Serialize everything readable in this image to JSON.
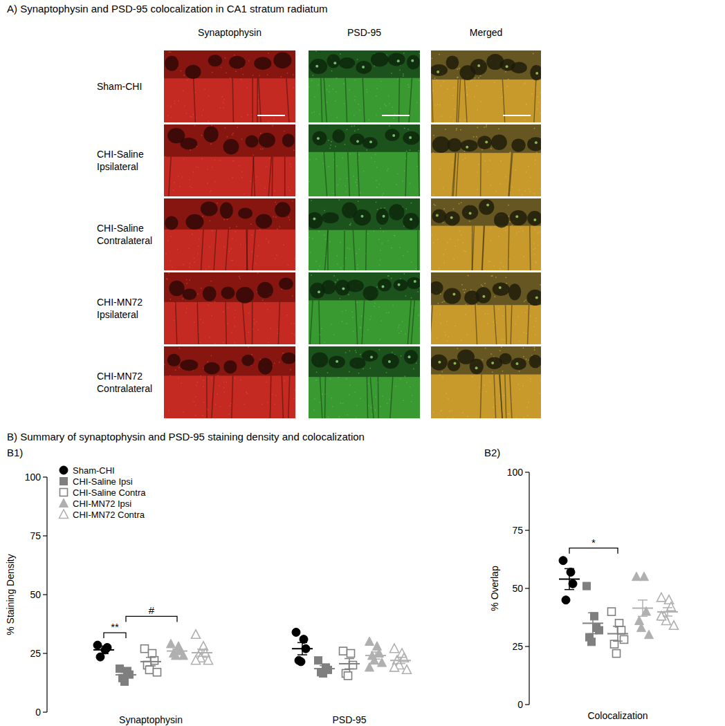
{
  "panel_a": {
    "title": "A) Synaptophysin and PSD-95 colocalization in CA1 stratum radiatum",
    "columns": [
      "Synaptophysin",
      "PSD-95",
      "Merged"
    ],
    "rows": [
      "Sham-CHI",
      "CHI-Saline Ipsilateral",
      "CHI-Saline Contralateral",
      "CHI-MN72 Ipsilateral",
      "CHI-MN72 Contralateral"
    ]
  },
  "panel_b_title": "B) Summary of synaptophysin and PSD-95 staining density and colocalization",
  "chart_data": [
    {
      "type": "scatter",
      "title": "B1)",
      "y_label": "% Staining Density",
      "categories": [
        "Synaptophysin",
        "PSD-95"
      ],
      "ylim": [
        0,
        100
      ],
      "yticks": [
        0,
        25,
        50,
        75,
        100
      ],
      "legend": "top-left",
      "series": [
        {
          "name": "Sham-CHI",
          "color": "#000000",
          "marker": "circle",
          "values": [
            26.5,
            27
          ],
          "errors": [
            1.6,
            2.6
          ],
          "points": [
            [
              28.5,
              26.5,
              27.5,
              23.5
            ],
            [
              34,
              31,
              27,
              22,
              21.5
            ]
          ]
        },
        {
          "name": "CHI-Saline Ipsi",
          "color": "#7f7f7f",
          "marker": "square",
          "values": [
            15.9,
            18.5
          ],
          "errors": [
            1.0,
            1.3
          ],
          "points": [
            [
              18.5,
              17.5,
              16,
              14.5,
              13
            ],
            [
              22,
              19,
              18,
              17,
              16.5
            ]
          ]
        },
        {
          "name": "CHI-Saline Contra",
          "color": "#7f7f7f",
          "marker": "square-open",
          "values": [
            21.5,
            20.6
          ],
          "errors": [
            1.8,
            2.2
          ],
          "points": [
            [
              27,
              25,
              22,
              20,
              18,
              17
            ],
            [
              26,
              25,
              20,
              16.5,
              15.5
            ]
          ]
        },
        {
          "name": "CHI-MN72 Ipsi",
          "color": "#b0b0b0",
          "marker": "triangle",
          "values": [
            26,
            24.1
          ],
          "errors": [
            0.9,
            1.5
          ],
          "points": [
            [
              29,
              28,
              26,
              25,
              24,
              24
            ],
            [
              30,
              28,
              25,
              24,
              22,
              21,
              19
            ]
          ]
        },
        {
          "name": "CHI-MN72 Contra",
          "color": "#b0b0b0",
          "marker": "triangle-open",
          "values": [
            25.3,
            22
          ],
          "errors": [
            1.5,
            1.3
          ],
          "points": [
            [
              33,
              28,
              25,
              24,
              23,
              22,
              22
            ],
            [
              27,
              25,
              23,
              22,
              20,
              18,
              19
            ]
          ]
        }
      ],
      "annotations": [
        {
          "text": "**",
          "category": 0,
          "from": 0,
          "to": 1
        },
        {
          "text": "#",
          "category": 0,
          "from": 1,
          "to": 3
        }
      ]
    },
    {
      "type": "scatter",
      "title": "B2)",
      "y_label": "% Overlap",
      "categories": [
        "Colocalization"
      ],
      "ylim": [
        0,
        100
      ],
      "yticks": [
        0,
        25,
        50,
        75,
        100
      ],
      "series": [
        {
          "name": "Sham-CHI",
          "color": "#000000",
          "marker": "circle",
          "values": [
            54
          ],
          "errors": [
            4.5
          ],
          "points": [
            [
              62,
              57,
              52,
              45
            ]
          ]
        },
        {
          "name": "CHI-Saline Ipsi",
          "color": "#7f7f7f",
          "marker": "square",
          "values": [
            35
          ],
          "errors": [
            4.5
          ],
          "points": [
            [
              51,
              38,
              33,
              29,
              27,
              32
            ]
          ]
        },
        {
          "name": "CHI-Saline Contra",
          "color": "#7f7f7f",
          "marker": "square-open",
          "values": [
            30.5
          ],
          "errors": [
            3.2
          ],
          "points": [
            [
              40,
              35,
              32,
              26,
              22,
              28
            ]
          ]
        },
        {
          "name": "CHI-MN72 Ipsi",
          "color": "#b0b0b0",
          "marker": "triangle",
          "values": [
            41.5
          ],
          "errors": [
            3.5
          ],
          "points": [
            [
              55,
              55,
              40,
              36,
              33,
              30
            ]
          ]
        },
        {
          "name": "CHI-MN72 Contra",
          "color": "#b0b0b0",
          "marker": "triangle-open",
          "values": [
            39.9
          ],
          "errors": [
            1.8
          ],
          "points": [
            [
              46,
              45,
              42,
              38,
              36,
              34,
              38
            ]
          ]
        }
      ],
      "annotations": [
        {
          "text": "*",
          "category": 0,
          "from": 0,
          "to": 2
        }
      ]
    }
  ]
}
